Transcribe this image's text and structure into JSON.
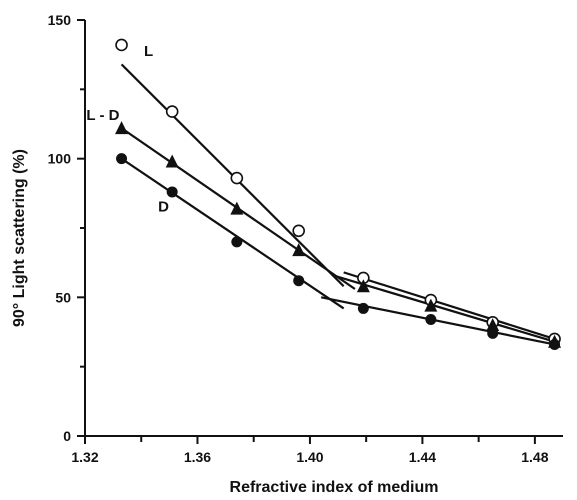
{
  "chart_data": {
    "type": "line",
    "title": "",
    "xlabel": "Refractive index of medium",
    "ylabel": "90° Light scattering (%)",
    "xlim": [
      1.32,
      1.49
    ],
    "ylim": [
      0,
      150
    ],
    "xticks": [
      1.32,
      1.36,
      1.4,
      1.44,
      1.48
    ],
    "xtick_labels": [
      "1.32",
      "1.36",
      "1.40",
      "1.44",
      "1.48"
    ],
    "yticks": [
      0,
      50,
      100,
      150
    ],
    "ytick_labels": [
      "0",
      "50",
      "100",
      "150"
    ],
    "grid": false,
    "legend": "none",
    "series": [
      {
        "name": "L",
        "marker": "open-circle",
        "points": [
          {
            "x": 1.333,
            "y": 141
          },
          {
            "x": 1.351,
            "y": 117
          },
          {
            "x": 1.374,
            "y": 93
          },
          {
            "x": 1.396,
            "y": 74
          },
          {
            "x": 1.419,
            "y": 57
          },
          {
            "x": 1.443,
            "y": 49
          },
          {
            "x": 1.465,
            "y": 41
          },
          {
            "x": 1.487,
            "y": 35
          }
        ],
        "fit_lines": [
          [
            {
              "x": 1.333,
              "y": 134
            },
            {
              "x": 1.412,
              "y": 54
            }
          ],
          [
            {
              "x": 1.412,
              "y": 59
            },
            {
              "x": 1.487,
              "y": 35
            }
          ]
        ]
      },
      {
        "name": "L - D",
        "marker": "filled-triangle",
        "points": [
          {
            "x": 1.333,
            "y": 111
          },
          {
            "x": 1.351,
            "y": 99
          },
          {
            "x": 1.374,
            "y": 82
          },
          {
            "x": 1.396,
            "y": 67
          },
          {
            "x": 1.419,
            "y": 54
          },
          {
            "x": 1.443,
            "y": 47
          },
          {
            "x": 1.465,
            "y": 40
          },
          {
            "x": 1.487,
            "y": 34
          }
        ],
        "fit_lines": [
          [
            {
              "x": 1.333,
              "y": 111
            },
            {
              "x": 1.416,
              "y": 53
            }
          ],
          [
            {
              "x": 1.408,
              "y": 58
            },
            {
              "x": 1.487,
              "y": 34
            }
          ]
        ]
      },
      {
        "name": "D",
        "marker": "filled-circle",
        "points": [
          {
            "x": 1.333,
            "y": 100
          },
          {
            "x": 1.351,
            "y": 88
          },
          {
            "x": 1.374,
            "y": 70
          },
          {
            "x": 1.396,
            "y": 56
          },
          {
            "x": 1.419,
            "y": 46
          },
          {
            "x": 1.443,
            "y": 42
          },
          {
            "x": 1.465,
            "y": 37
          },
          {
            "x": 1.487,
            "y": 33
          }
        ],
        "fit_lines": [
          [
            {
              "x": 1.333,
              "y": 100
            },
            {
              "x": 1.412,
              "y": 46
            }
          ],
          [
            {
              "x": 1.404,
              "y": 50
            },
            {
              "x": 1.487,
              "y": 33
            }
          ]
        ]
      }
    ]
  }
}
